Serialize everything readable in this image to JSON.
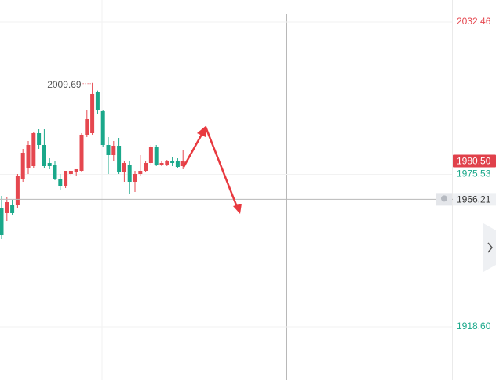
{
  "chart_data": {
    "type": "candlestick",
    "open": [
      1963.09,
      1961.05,
      1963.97,
      1963.97,
      1973.92,
      1977.73,
      1978.61,
      1990.9,
      1986.51,
      1979.78,
      1979.19,
      1973.92,
      1971.0,
      1975.68,
      1976.27,
      1976.85,
      1990.32,
      1990.9,
      2006.12,
      1999.1,
      1986.51,
      1982.71,
      1986.22,
      1976.27,
      1979.19,
      1972.75,
      1975.68,
      1976.85,
      1979.78,
      1985.63,
      1979.19,
      1978.9,
      1980.36,
      1980.66,
      1978.61
    ],
    "high": [
      1967.48,
      1966.9,
      1966.02,
      1975.68,
      1985.05,
      1987.97,
      1991.49,
      1992.36,
      1992.36,
      1981.53,
      1980.66,
      1975.68,
      1976.85,
      1976.85,
      1977.44,
      1990.9,
      1999.68,
      2009.69,
      2006.81,
      1999.68,
      1989.44,
      1987.97,
      1989.14,
      1980.66,
      1980.66,
      1976.85,
      1982.71,
      1980.66,
      1986.51,
      1986.51,
      1980.66,
      1980.95,
      1982.12,
      1981.53,
      1984.46
    ],
    "low": [
      1951.39,
      1958.12,
      1960.17,
      1963.09,
      1972.75,
      1975.68,
      1977.73,
      1985.05,
      1977.73,
      1977.44,
      1973.34,
      1969.83,
      1970.41,
      1974.8,
      1975.1,
      1976.27,
      1989.44,
      1990.32,
      1998.22,
      1985.63,
      1975.68,
      1980.66,
      1975.68,
      1972.75,
      1968.07,
      1968.95,
      1975.1,
      1976.27,
      1979.19,
      1978.61,
      1978.61,
      1978.61,
      1978.61,
      1977.73,
      1977.44
    ],
    "close": [
      1952.85,
      1965.14,
      1961.05,
      1974.8,
      1983.58,
      1986.51,
      1990.9,
      1986.51,
      1978.61,
      1978.61,
      1973.92,
      1971.0,
      1976.85,
      1976.85,
      1977.44,
      1990.32,
      1996.17,
      2005.54,
      1999.68,
      1986.51,
      1982.71,
      1986.22,
      1976.27,
      1979.78,
      1972.75,
      1975.68,
      1976.85,
      1979.78,
      1985.63,
      1979.19,
      1979.78,
      1980.36,
      1979.78,
      1978.31,
      1980.5
    ],
    "up_color": "#e5474f",
    "down_color": "#1aa88a",
    "ylim": [
      1898.7,
      2040.66
    ],
    "yticks": [
      {
        "value": 2032.46,
        "label": "2032.46"
      },
      {
        "value": 1975.53,
        "label": "1975.53"
      },
      {
        "value": 1918.6,
        "label": "1918.60"
      }
    ],
    "ytick_colors": [
      "#e5474f",
      "#1aa88a",
      "#1aa88a"
    ],
    "grid": true,
    "current_price": {
      "value": 1980.5,
      "label": "1980.50"
    },
    "crosshair_price": {
      "value": 1966.21,
      "label": "1966.21"
    }
  }
}
